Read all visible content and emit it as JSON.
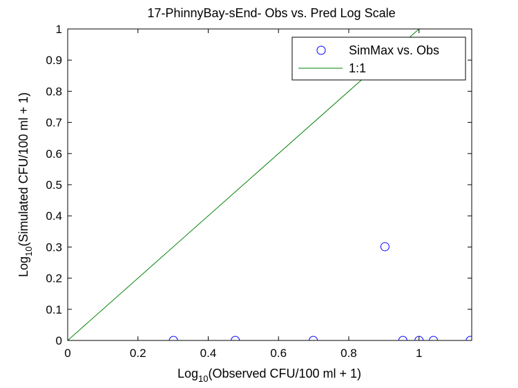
{
  "chart_data": {
    "type": "scatter",
    "title": "17-PhinnyBay-sEnd- Obs vs. Pred Log Scale",
    "xlabel": {
      "prefix": "Log",
      "sub": "10",
      "suffix": "(Observed CFU/100 ml + 1)"
    },
    "ylabel": {
      "prefix": "Log",
      "sub": "10",
      "suffix": "(Simulated CFU/100 ml + 1)"
    },
    "xlim": [
      0,
      1.15
    ],
    "ylim": [
      0,
      1
    ],
    "xticks": [
      0,
      0.2,
      0.4,
      0.6,
      0.8,
      1
    ],
    "xtick_labels": [
      "0",
      "0.2",
      "0.4",
      "0.6",
      "0.8",
      "1"
    ],
    "yticks": [
      0,
      0.1,
      0.2,
      0.3,
      0.4,
      0.5,
      0.6,
      0.7,
      0.8,
      0.9,
      1
    ],
    "ytick_labels": [
      "0",
      "0.1",
      "0.2",
      "0.3",
      "0.4",
      "0.5",
      "0.6",
      "0.7",
      "0.8",
      "0.9",
      "1"
    ],
    "grid": false,
    "legend_position": "top-right",
    "series": [
      {
        "name": "SimMax vs. Obs",
        "marker": "circle",
        "color": "#0000ff",
        "x": [
          0.301,
          0.477,
          0.699,
          0.903,
          0.954,
          1.0,
          1.041,
          1.146
        ],
        "y": [
          0,
          0,
          0,
          0.301,
          0,
          0,
          0,
          0
        ]
      },
      {
        "name": "1:1",
        "style": "line",
        "color": "#008000",
        "x": [
          0,
          1
        ],
        "y": [
          0,
          1
        ]
      }
    ]
  }
}
